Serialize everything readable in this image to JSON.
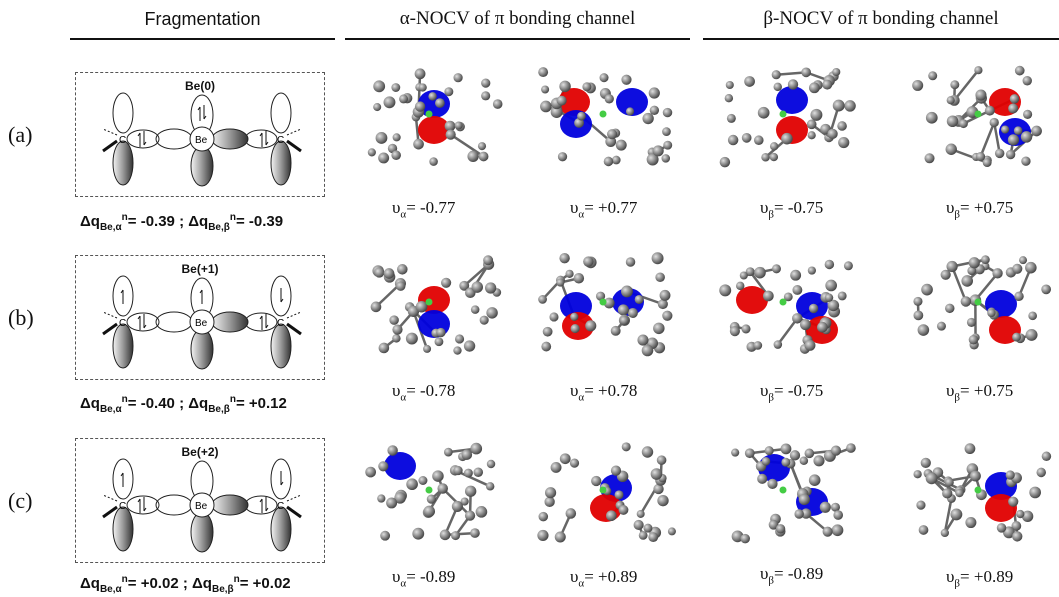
{
  "headers": {
    "fragmentation": "Fragmentation",
    "alpha": "α-NOCV of π bonding channel",
    "beta": "β-NOCV of π bonding channel"
  },
  "rows": [
    {
      "label": "(a)",
      "fragment_title": "Be(0)",
      "center_atom": "Be",
      "side_atom": "C",
      "charge_alpha": "= -0.39",
      "charge_beta": "= -0.39",
      "charge_sep": " ; ",
      "eigen": [
        "= -0.77",
        "= +0.77",
        "= -0.75",
        "= +0.75"
      ]
    },
    {
      "label": "(b)",
      "fragment_title": "Be(+1)",
      "center_atom": "Be",
      "side_atom": "C",
      "charge_alpha": "= -0.40",
      "charge_beta": "= +0.12",
      "charge_sep": " ; ",
      "eigen": [
        "= -0.78",
        "= +0.78",
        "= -0.75",
        "= +0.75"
      ]
    },
    {
      "label": "(c)",
      "fragment_title": "Be(+2)",
      "center_atom": "Be",
      "side_atom": "C",
      "charge_alpha": "= +0.02",
      "charge_beta": "= +0.02",
      "charge_sep": " ; ",
      "eigen": [
        "= -0.89",
        "= +0.89",
        "= -0.89",
        "= +0.89"
      ]
    }
  ],
  "symbols": {
    "delta_q": "Δq",
    "be_alpha": "Be,α",
    "be_beta": "Be,β",
    "sup_n": "n",
    "upsilon": "υ",
    "alpha": "α",
    "beta": "β"
  },
  "colors": {
    "lobe_red": "#e00000",
    "lobe_blue": "#0000dd",
    "atom_grey": "#7a7a7a",
    "be_green": "#44cc44"
  }
}
